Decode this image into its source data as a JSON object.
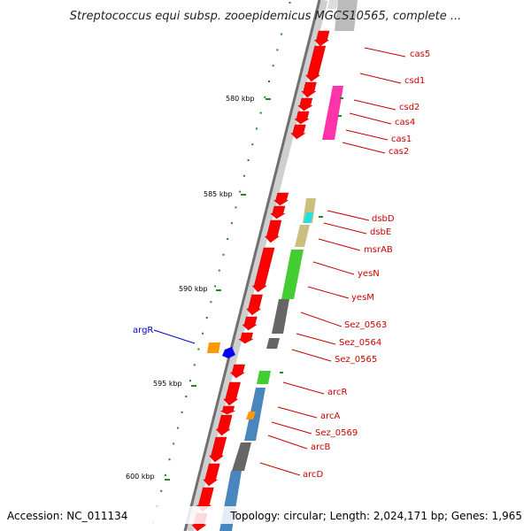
{
  "title": "Streptococcus equi subsp. zooepidemicus MGCS10565, complete ...",
  "footer": {
    "accession": "Accession: NC_011134",
    "info": "Topology: circular; Length: 2,024,171 bp; Genes: 1,965"
  },
  "colors": {
    "cds": "#ff0000",
    "rna": "#999999",
    "label_right": "#cc0000",
    "label_left": "#0000cc",
    "tick": "#228822",
    "cas": "#ff33aa",
    "dsb": "#cbbf80",
    "cyan": "#22e0e0",
    "green": "#44cc33",
    "gray": "#666666",
    "blue": "#4a86be",
    "orange": "#ff9900"
  },
  "scale_labels": [
    "580 kbp",
    "585 kbp",
    "590 kbp",
    "595 kbp",
    "600 kbp"
  ],
  "gene_labels": [
    "cas5",
    "csd1",
    "csd2",
    "cas4",
    "cas1",
    "cas2",
    "dsbD",
    "dsbE",
    "msrAB",
    "yesN",
    "yesM",
    "Sez_0563",
    "Sez_0564",
    "Sez_0565",
    "arcR",
    "arcA",
    "Sez_0569",
    "arcB",
    "arcD"
  ],
  "left_label": "argR"
}
